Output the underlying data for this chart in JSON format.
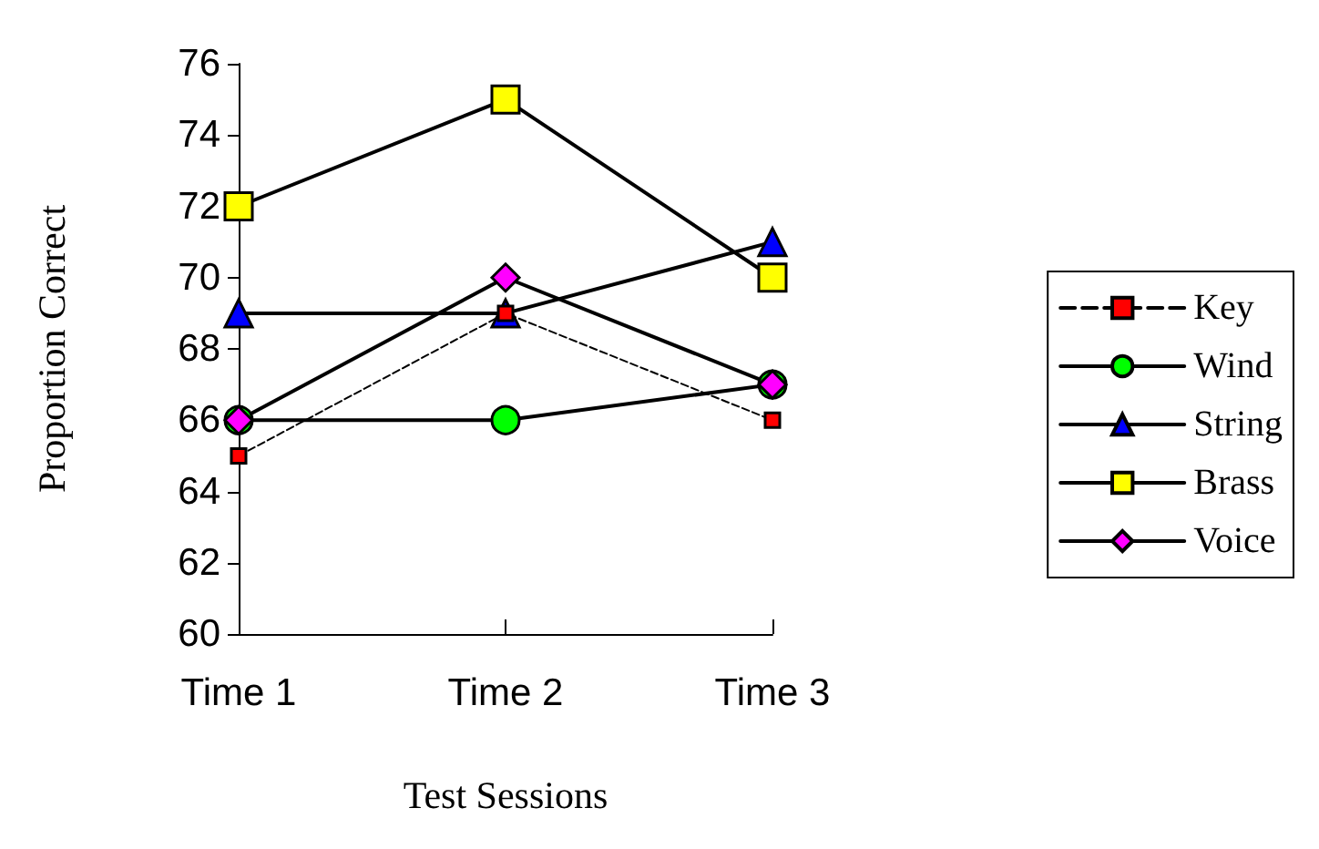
{
  "chart_data": {
    "type": "line",
    "xlabel": "Test Sessions",
    "ylabel": "Proportion Correct",
    "categories": [
      "Time 1",
      "Time 2",
      "Time 3"
    ],
    "ylim": [
      60,
      76
    ],
    "yticks": [
      60,
      62,
      64,
      66,
      68,
      70,
      72,
      74,
      76
    ],
    "grid": false,
    "legend": "right",
    "series": [
      {
        "name": "Key",
        "color": "#ff0000",
        "marker": "square",
        "line_style": "dashed",
        "values": [
          65,
          69,
          66
        ]
      },
      {
        "name": "Wind",
        "color": "#00ff00",
        "marker": "circle",
        "line_style": "solid",
        "values": [
          66,
          66,
          67
        ]
      },
      {
        "name": "String",
        "color": "#0000ff",
        "marker": "triangle",
        "line_style": "solid",
        "values": [
          69,
          69,
          71
        ]
      },
      {
        "name": "Brass",
        "color": "#ffff00",
        "marker": "square",
        "line_style": "solid",
        "values": [
          72,
          75,
          70
        ]
      },
      {
        "name": "Voice",
        "color": "#ff00ff",
        "marker": "diamond",
        "line_style": "solid",
        "values": [
          66,
          70,
          67
        ]
      }
    ]
  }
}
